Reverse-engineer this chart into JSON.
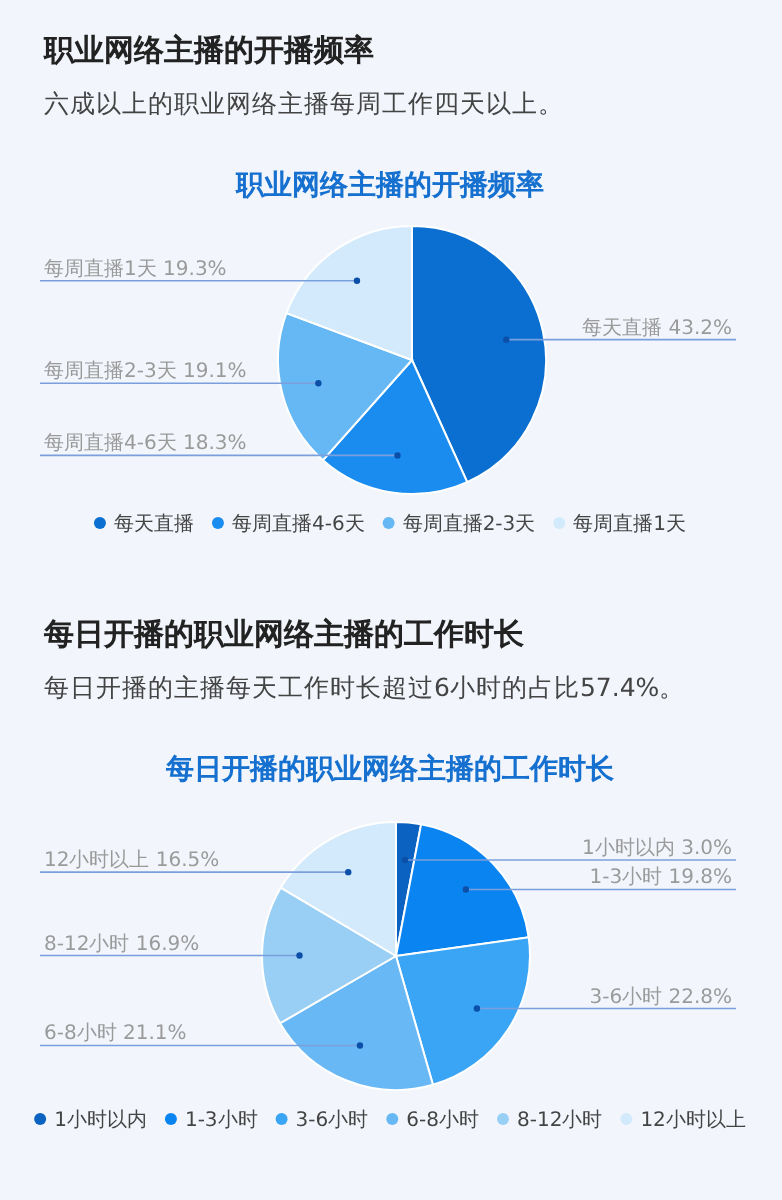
{
  "chart_data": [
    {
      "type": "pie",
      "title": "职业网络主播的开播频率",
      "subtitle": "六成以上的职业网络主播每周工作四天以上。",
      "annotations": [
        "职业网络主播的开播频率"
      ],
      "categories": [
        "每天直播",
        "每周直播4-6天",
        "每周直播2-3天",
        "每周直播1天"
      ],
      "values": [
        43.2,
        18.3,
        19.1,
        19.3
      ],
      "value_labels": [
        "43.2%",
        "18.3%",
        "19.1%",
        "19.3%"
      ],
      "colors": [
        "#0a6fd0",
        "#1a8cf0",
        "#66b8f5",
        "#d2eafb"
      ],
      "legend": "bottom"
    },
    {
      "type": "pie",
      "title": "每日开播的职业网络主播的工作时长",
      "subtitle": "每日开播的主播每天工作时长超过6小时的占比57.4%。",
      "annotations": [
        "每日开播的职业网络主播的工作时长"
      ],
      "categories": [
        "1小时以内",
        "1-3小时",
        "3-6小时",
        "6-8小时",
        "8-12小时",
        "12小时以上"
      ],
      "values": [
        3.0,
        19.8,
        22.8,
        21.1,
        16.9,
        16.5
      ],
      "value_labels": [
        "3.0%",
        "19.8%",
        "22.8%",
        "21.1%",
        "16.9%",
        "16.5%"
      ],
      "colors": [
        "#0b62c0",
        "#0a84f0",
        "#3aa4f5",
        "#68b8f5",
        "#99cff5",
        "#d2eafb"
      ],
      "legend": "bottom"
    }
  ]
}
